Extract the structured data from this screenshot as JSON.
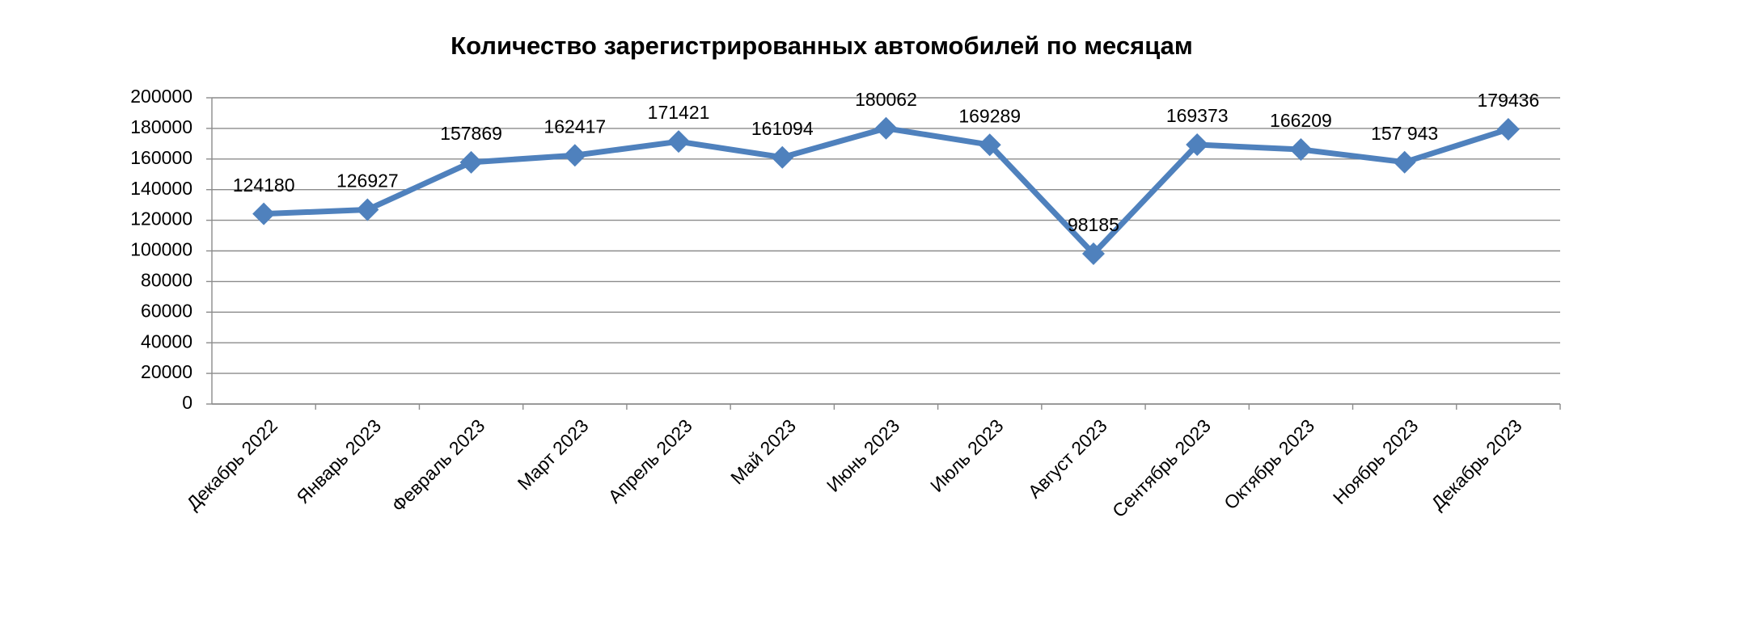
{
  "chart_data": {
    "type": "line",
    "title": "Количество зарегистрированных автомобилей по месяцам",
    "categories": [
      "Декабрь 2022",
      "Январь 2023",
      "Февраль 2023",
      "Март 2023",
      "Апрель 2023",
      "Май 2023",
      "Июнь 2023",
      "Июль 2023",
      "Август 2023",
      "Сентябрь 2023",
      "Октябрь 2023",
      "Ноябрь 2023",
      "Декабрь 2023"
    ],
    "values": [
      124180,
      126927,
      157869,
      162417,
      171421,
      161094,
      180062,
      169289,
      98185,
      169373,
      166209,
      157943,
      179436
    ],
    "value_labels": [
      "124180",
      "126927",
      "157869",
      "162417",
      "171421",
      "161094",
      "180062",
      "169289",
      "98185",
      "169373",
      "166209",
      "157 943",
      "179436"
    ],
    "color": "#4f81bd",
    "ylim": [
      0,
      200000
    ],
    "yticks": [
      0,
      20000,
      40000,
      60000,
      80000,
      100000,
      120000,
      140000,
      160000,
      180000,
      200000
    ],
    "grid": true
  }
}
